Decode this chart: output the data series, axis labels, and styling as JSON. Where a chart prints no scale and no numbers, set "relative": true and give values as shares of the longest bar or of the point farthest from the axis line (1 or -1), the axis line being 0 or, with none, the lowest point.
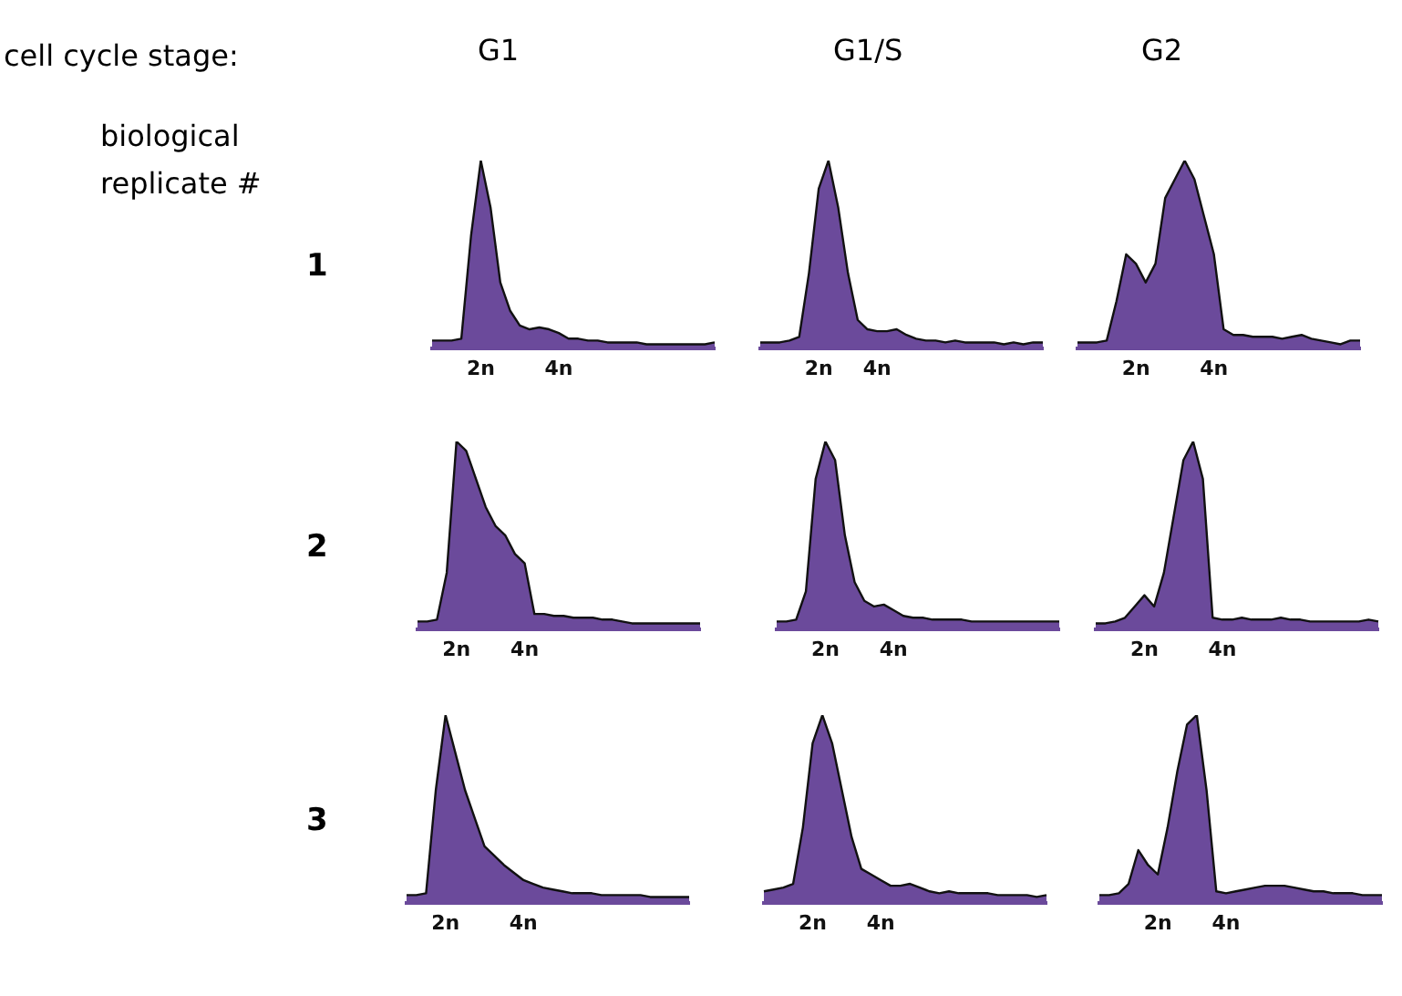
{
  "chart_data": [
    {
      "type": "other",
      "annotations": [
        "cell cycle stage:",
        "biological replicate #"
      ]
    },
    {
      "type": "area",
      "title": "G1",
      "ylabel": "1",
      "relative": true,
      "categories": [
        null,
        null,
        null,
        null,
        null,
        "2n",
        null,
        null,
        null,
        null,
        null,
        null,
        null,
        "4n",
        null,
        null,
        null,
        null,
        null,
        null,
        null,
        null,
        null,
        null,
        null,
        null,
        null,
        null,
        null,
        null
      ],
      "series": [
        {
          "color": "#6b4a9b",
          "values": [
            0.04,
            0.04,
            0.04,
            0.05,
            0.6,
            1,
            0.75,
            0.35,
            0.2,
            0.12,
            0.1,
            0.11,
            0.1,
            0.08,
            0.05,
            0.05,
            0.04,
            0.04,
            0.03,
            0.03,
            0.03,
            0.03,
            0.02,
            0.02,
            0.02,
            0.02,
            0.02,
            0.02,
            0.02,
            0.03
          ]
        }
      ]
    },
    {
      "type": "area",
      "title": "G1/S",
      "relative": true,
      "categories": [
        null,
        null,
        null,
        null,
        null,
        null,
        "2n",
        null,
        null,
        null,
        null,
        null,
        "4n",
        null,
        null,
        null,
        null,
        null,
        null,
        null,
        null,
        null,
        null,
        null,
        null,
        null,
        null,
        null,
        null,
        null
      ],
      "series": [
        {
          "color": "#6b4a9b",
          "values": [
            0.03,
            0.03,
            0.03,
            0.04,
            0.06,
            0.4,
            0.85,
            1,
            0.75,
            0.4,
            0.15,
            0.1,
            0.09,
            0.09,
            0.1,
            0.07,
            0.05,
            0.04,
            0.04,
            0.03,
            0.04,
            0.03,
            0.03,
            0.03,
            0.03,
            0.02,
            0.03,
            0.02,
            0.03,
            0.03
          ]
        }
      ]
    },
    {
      "type": "area",
      "title": "G2",
      "relative": true,
      "categories": [
        null,
        null,
        null,
        null,
        null,
        null,
        "2n",
        null,
        null,
        null,
        null,
        null,
        null,
        null,
        "4n",
        null,
        null,
        null,
        null,
        null,
        null,
        null,
        null,
        null,
        null,
        null,
        null,
        null,
        null,
        null
      ],
      "series": [
        {
          "color": "#6b4a9b",
          "values": [
            0.03,
            0.03,
            0.03,
            0.04,
            0.25,
            0.5,
            0.45,
            0.35,
            0.45,
            0.8,
            0.9,
            1,
            0.9,
            0.7,
            0.5,
            0.1,
            0.07,
            0.07,
            0.06,
            0.06,
            0.06,
            0.05,
            0.06,
            0.07,
            0.05,
            0.04,
            0.03,
            0.02,
            0.04,
            0.04
          ]
        }
      ]
    },
    {
      "type": "area",
      "ylabel": "2",
      "relative": true,
      "categories": [
        null,
        null,
        null,
        null,
        "2n",
        null,
        null,
        null,
        null,
        null,
        null,
        "4n",
        null,
        null,
        null,
        null,
        null,
        null,
        null,
        null,
        null,
        null,
        null,
        null,
        null,
        null,
        null,
        null,
        null,
        null
      ],
      "series": [
        {
          "color": "#6b4a9b",
          "values": [
            0.04,
            0.04,
            0.05,
            0.3,
            1,
            0.95,
            0.8,
            0.65,
            0.55,
            0.5,
            0.4,
            0.35,
            0.08,
            0.08,
            0.07,
            0.07,
            0.06,
            0.06,
            0.06,
            0.05,
            0.05,
            0.04,
            0.03,
            0.03,
            0.03,
            0.03,
            0.03,
            0.03,
            0.03,
            0.03
          ]
        }
      ]
    },
    {
      "type": "area",
      "relative": true,
      "categories": [
        null,
        null,
        null,
        null,
        null,
        "2n",
        null,
        null,
        null,
        null,
        null,
        null,
        "4n",
        null,
        null,
        null,
        null,
        null,
        null,
        null,
        null,
        null,
        null,
        null,
        null,
        null,
        null,
        null,
        null,
        null
      ],
      "series": [
        {
          "color": "#6b4a9b",
          "values": [
            0.04,
            0.04,
            0.05,
            0.2,
            0.8,
            1,
            0.9,
            0.5,
            0.25,
            0.15,
            0.12,
            0.13,
            0.1,
            0.07,
            0.06,
            0.06,
            0.05,
            0.05,
            0.05,
            0.05,
            0.04,
            0.04,
            0.04,
            0.04,
            0.04,
            0.04,
            0.04,
            0.04,
            0.04,
            0.04
          ]
        }
      ]
    },
    {
      "type": "area",
      "relative": true,
      "categories": [
        null,
        null,
        null,
        null,
        null,
        "2n",
        null,
        null,
        null,
        null,
        null,
        null,
        null,
        "4n",
        null,
        null,
        null,
        null,
        null,
        null,
        null,
        null,
        null,
        null,
        null,
        null,
        null,
        null,
        null,
        null
      ],
      "series": [
        {
          "color": "#6b4a9b",
          "values": [
            0.03,
            0.03,
            0.04,
            0.06,
            0.12,
            0.18,
            0.12,
            0.3,
            0.6,
            0.9,
            1,
            0.8,
            0.06,
            0.05,
            0.05,
            0.06,
            0.05,
            0.05,
            0.05,
            0.06,
            0.05,
            0.05,
            0.04,
            0.04,
            0.04,
            0.04,
            0.04,
            0.04,
            0.05,
            0.04
          ]
        }
      ]
    },
    {
      "type": "area",
      "ylabel": "3",
      "relative": true,
      "categories": [
        null,
        null,
        null,
        null,
        "2n",
        null,
        null,
        null,
        null,
        null,
        null,
        null,
        "4n",
        null,
        null,
        null,
        null,
        null,
        null,
        null,
        null,
        null,
        null,
        null,
        null,
        null,
        null,
        null,
        null,
        null
      ],
      "series": [
        {
          "color": "#6b4a9b",
          "values": [
            0.04,
            0.04,
            0.05,
            0.6,
            1,
            0.8,
            0.6,
            0.45,
            0.3,
            0.25,
            0.2,
            0.16,
            0.12,
            0.1,
            0.08,
            0.07,
            0.06,
            0.05,
            0.05,
            0.05,
            0.04,
            0.04,
            0.04,
            0.04,
            0.04,
            0.03,
            0.03,
            0.03,
            0.03,
            0.03
          ]
        }
      ]
    },
    {
      "type": "area",
      "relative": true,
      "categories": [
        null,
        null,
        null,
        null,
        null,
        "2n",
        null,
        null,
        null,
        null,
        null,
        null,
        "4n",
        null,
        null,
        null,
        null,
        null,
        null,
        null,
        null,
        null,
        null,
        null,
        null,
        null,
        null,
        null,
        null,
        null
      ],
      "series": [
        {
          "color": "#6b4a9b",
          "values": [
            0.06,
            0.07,
            0.08,
            0.1,
            0.4,
            0.85,
            1,
            0.85,
            0.6,
            0.35,
            0.18,
            0.15,
            0.12,
            0.09,
            0.09,
            0.1,
            0.08,
            0.06,
            0.05,
            0.06,
            0.05,
            0.05,
            0.05,
            0.05,
            0.04,
            0.04,
            0.04,
            0.04,
            0.03,
            0.04
          ]
        }
      ]
    },
    {
      "type": "area",
      "relative": true,
      "categories": [
        null,
        null,
        null,
        null,
        null,
        null,
        "2n",
        null,
        null,
        null,
        null,
        null,
        null,
        "4n",
        null,
        null,
        null,
        null,
        null,
        null,
        null,
        null,
        null,
        null,
        null,
        null,
        null,
        null,
        null,
        null
      ],
      "series": [
        {
          "color": "#6b4a9b",
          "values": [
            0.04,
            0.04,
            0.05,
            0.1,
            0.28,
            0.2,
            0.15,
            0.4,
            0.7,
            0.95,
            1,
            0.6,
            0.06,
            0.05,
            0.06,
            0.07,
            0.08,
            0.09,
            0.09,
            0.09,
            0.08,
            0.07,
            0.06,
            0.06,
            0.05,
            0.05,
            0.05,
            0.04,
            0.04,
            0.04
          ]
        }
      ]
    }
  ]
}
